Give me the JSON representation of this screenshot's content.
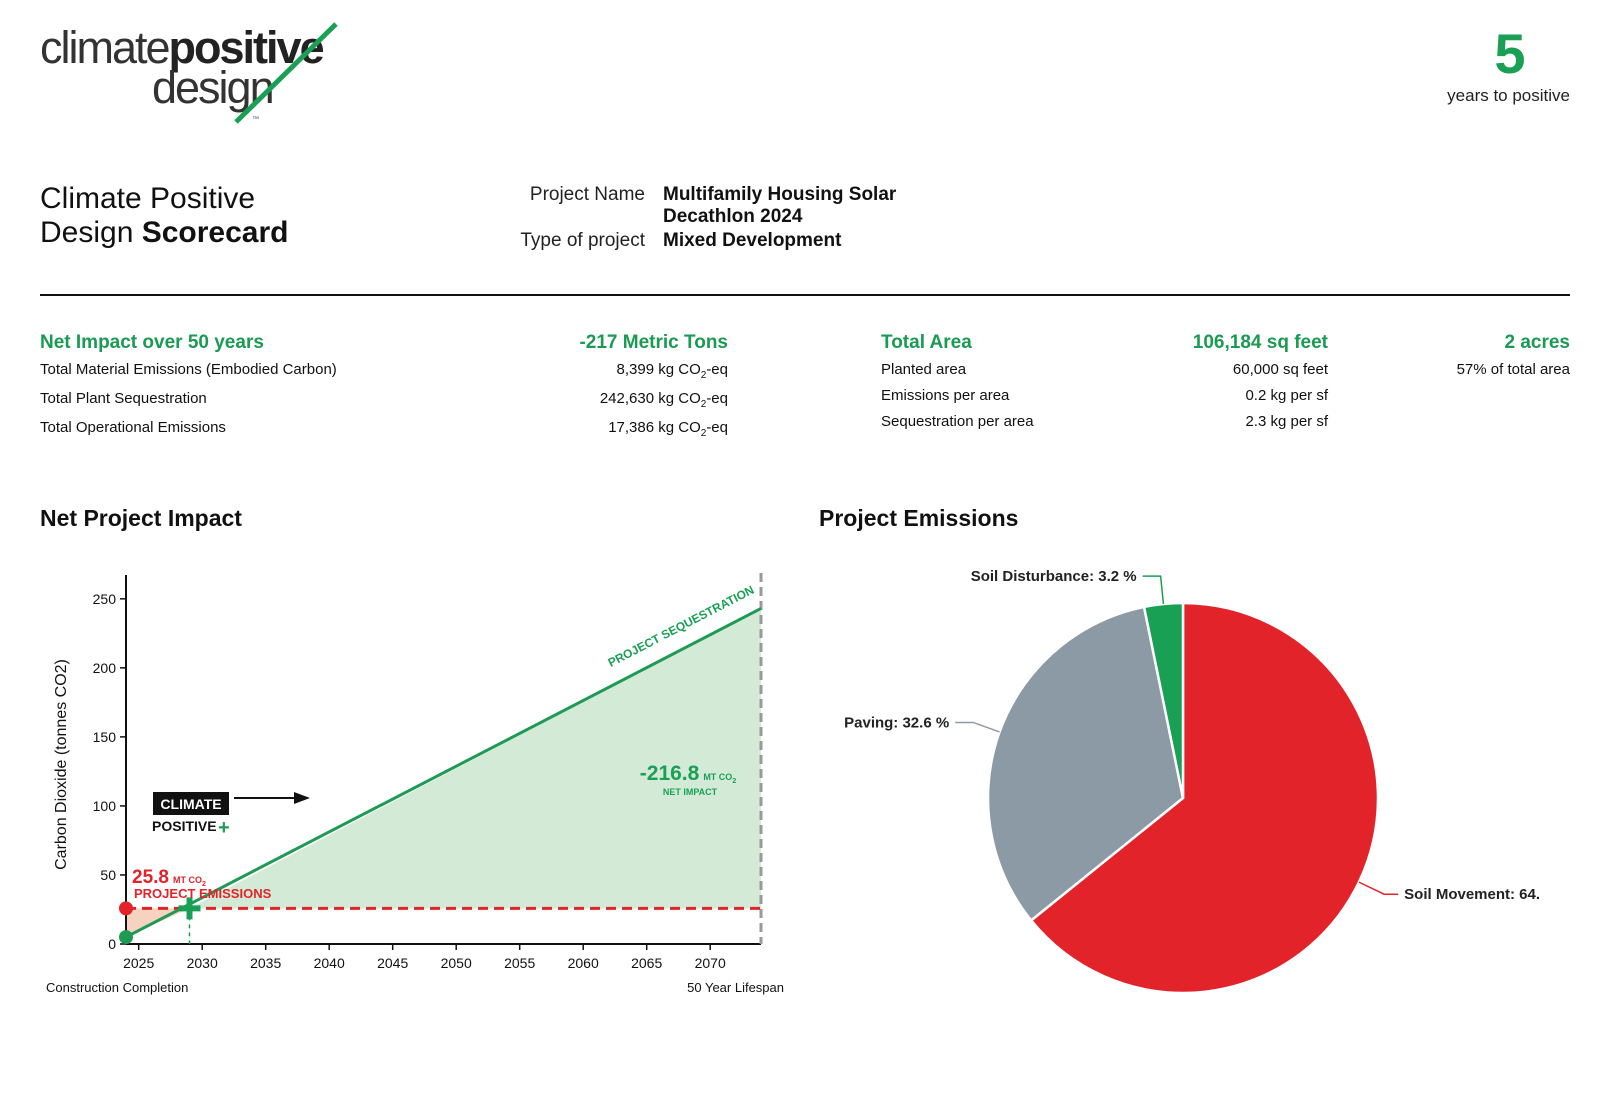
{
  "brand": {
    "logo_light": "climate",
    "logo_bold": "positive",
    "logo_line2": "design",
    "trademark": "™",
    "accent_color": "#1aa055",
    "red_color": "#e3232a",
    "gray_color": "#8c9aa5"
  },
  "years_to_positive": {
    "value": "5",
    "label": "years to positive"
  },
  "scorecard": {
    "title_line1": "Climate Positive",
    "title_line2_light": "Design ",
    "title_line2_bold": "Scorecard"
  },
  "project": {
    "name_label": "Project Name",
    "name_line1": "Multifamily Housing Solar",
    "name_line2": "Decathlon 2024",
    "type_label": "Type of project",
    "type_value": "Mixed Development"
  },
  "net_impact": {
    "heading": "Net Impact over 50 years",
    "heading_value": "-217 Metric Tons",
    "rows": [
      {
        "label": "Total Material Emissions (Embodied Carbon)",
        "value": "8,399 kg CO",
        "sub": "2",
        "suffix": "-eq"
      },
      {
        "label": "Total Plant Sequestration",
        "value": "242,630 kg CO",
        "sub": "2",
        "suffix": "-eq"
      },
      {
        "label": "Total Operational Emissions",
        "value": "17,386 kg CO",
        "sub": "2",
        "suffix": "-eq"
      }
    ]
  },
  "area": {
    "heading": "Total Area",
    "heading_value": "106,184 sq feet",
    "heading_acres": "2 acres",
    "rows": [
      {
        "label": "Planted area",
        "value": "60,000 sq feet",
        "extra": "57% of total area"
      },
      {
        "label": "Emissions per area",
        "value": "0.2 kg per sf",
        "extra": ""
      },
      {
        "label": "Sequestration per area",
        "value": "2.3 kg per sf",
        "extra": ""
      }
    ]
  },
  "sections": {
    "net_project_impact": "Net Project Impact",
    "project_emissions": "Project Emissions"
  },
  "chart_data": [
    {
      "type": "area",
      "title": "Net Project Impact",
      "xlabel": "",
      "ylabel": "Carbon Dioxide (tonnes CO2)",
      "xlim": [
        2024,
        2074
      ],
      "ylim": [
        0,
        260
      ],
      "x_ticks": [
        2025,
        2030,
        2035,
        2040,
        2045,
        2050,
        2055,
        2060,
        2065,
        2070
      ],
      "y_ticks": [
        0,
        50,
        100,
        150,
        200,
        250
      ],
      "series": [
        {
          "name": "Project Sequestration",
          "x": [
            2024,
            2074
          ],
          "values": [
            5,
            243
          ]
        },
        {
          "name": "Project Emissions",
          "x": [
            2024,
            2074
          ],
          "values": [
            25.8,
            25.8
          ]
        }
      ],
      "start_emission_point": {
        "x": 2024,
        "y": 25.8
      },
      "start_sequestration_point": {
        "x": 2024,
        "y": 5
      },
      "crossover": {
        "x": 2029,
        "y": 25.8
      },
      "annotations": {
        "sequestration_label": "PROJECT SEQUESTRATION",
        "emissions_value": "25.8",
        "emissions_unit": "MT CO",
        "emissions_unit_sub": "2",
        "emissions_label": "PROJECT EMISSIONS",
        "net_value": "-216.8",
        "net_unit": "MT CO",
        "net_unit_sub": "2",
        "net_label": "NET IMPACT",
        "badge_line1": "CLIMATE",
        "badge_line2": "POSITIVE",
        "badge_plus": "+",
        "left_caption": "Construction Completion",
        "right_caption": "50 Year Lifespan"
      }
    },
    {
      "type": "pie",
      "title": "Project Emissions",
      "slices": [
        {
          "label": "Soil Movement: 64.",
          "name": "Soil Movement",
          "value": 64.2,
          "color": "#e3232a"
        },
        {
          "label": "Paving: 32.6 %",
          "name": "Paving",
          "value": 32.6,
          "color": "#8c9aa5"
        },
        {
          "label": "Soil Disturbance: 3.2 %",
          "name": "Soil Disturbance",
          "value": 3.2,
          "color": "#1aa055"
        }
      ]
    }
  ]
}
